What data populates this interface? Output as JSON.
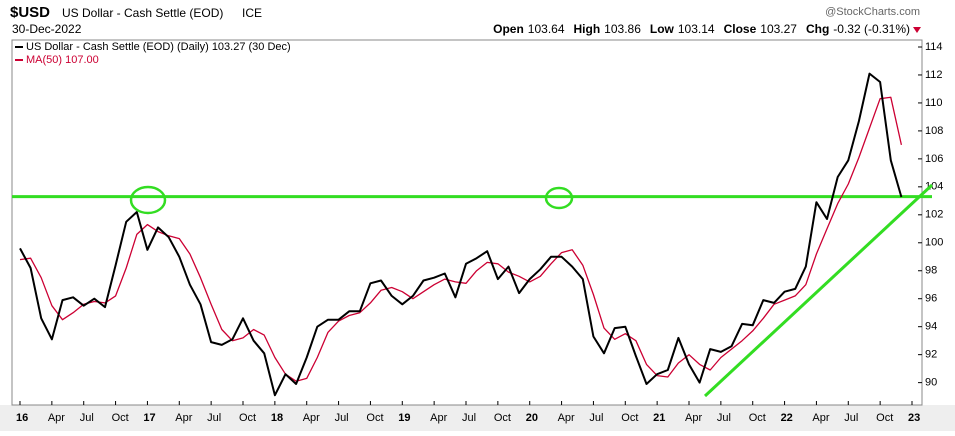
{
  "header": {
    "symbol": "$USD",
    "name": "US Dollar - Cash Settle (EOD)",
    "exchange": "ICE",
    "source": "@StockCharts.com",
    "date": "30-Dec-2022",
    "quote": [
      {
        "label": "Open",
        "value": "103.64"
      },
      {
        "label": "High",
        "value": "103.86"
      },
      {
        "label": "Low",
        "value": "103.14"
      },
      {
        "label": "Close",
        "value": "103.27"
      },
      {
        "label": "Chg",
        "value": "-0.32 (-0.31%)"
      }
    ]
  },
  "chart_data": {
    "type": "line",
    "categories": [
      "16",
      null,
      null,
      "Apr",
      null,
      null,
      "Jul",
      null,
      null,
      "Oct",
      null,
      null,
      "17",
      null,
      null,
      "Apr",
      null,
      null,
      "Jul",
      null,
      null,
      "Oct",
      null,
      null,
      "18",
      null,
      null,
      "Apr",
      null,
      null,
      "Jul",
      null,
      null,
      "Oct",
      null,
      null,
      "19",
      null,
      null,
      "Apr",
      null,
      null,
      "Jul",
      null,
      null,
      "Oct",
      null,
      null,
      "20",
      null,
      null,
      "Apr",
      null,
      null,
      "Jul",
      null,
      null,
      "Oct",
      null,
      null,
      "21",
      null,
      null,
      "Apr",
      null,
      null,
      "Jul",
      null,
      null,
      "Oct",
      null,
      null,
      "22",
      null,
      null,
      "Apr",
      null,
      null,
      "Jul",
      null,
      null,
      "Oct",
      null,
      null,
      "23"
    ],
    "series": [
      {
        "name": "US Dollar - Cash Settle (EOD) (Daily) 103.27 (30 Dec)",
        "color": "#000000",
        "values": [
          99.6,
          98.2,
          94.6,
          93.1,
          95.9,
          96.1,
          95.5,
          96.0,
          95.4,
          98.4,
          101.5,
          102.2,
          99.5,
          101.1,
          100.4,
          99.0,
          97.0,
          95.6,
          92.9,
          92.7,
          93.1,
          94.6,
          93.0,
          92.1,
          89.1,
          90.6,
          89.9,
          91.8,
          94.0,
          94.5,
          94.5,
          95.1,
          95.1,
          97.1,
          97.3,
          96.2,
          95.6,
          96.2,
          97.3,
          97.5,
          97.8,
          96.1,
          98.5,
          98.9,
          99.4,
          97.4,
          98.3,
          96.4,
          97.4,
          98.1,
          99.0,
          99.0,
          98.3,
          97.4,
          93.3,
          92.1,
          93.9,
          94.0,
          91.9,
          89.9,
          90.6,
          90.9,
          93.2,
          91.3,
          90.0,
          92.4,
          92.2,
          92.6,
          94.2,
          94.1,
          95.9,
          95.7,
          96.5,
          96.7,
          98.3,
          102.9,
          101.7,
          104.7,
          105.9,
          108.7,
          112.1,
          111.5,
          105.9,
          103.27,
          null
        ]
      },
      {
        "name": "MA(50) 107.00",
        "color": "#cc0033",
        "values": [
          98.8,
          98.9,
          97.5,
          95.5,
          94.5,
          95.0,
          95.6,
          95.8,
          95.7,
          96.2,
          98.2,
          100.6,
          101.3,
          100.8,
          100.5,
          100.3,
          99.2,
          97.5,
          95.6,
          93.8,
          93.0,
          93.2,
          93.8,
          93.4,
          91.8,
          90.6,
          90.1,
          90.3,
          91.8,
          93.6,
          94.4,
          94.8,
          95.0,
          95.7,
          96.6,
          96.8,
          96.5,
          96.0,
          96.5,
          97.0,
          97.4,
          97.2,
          97.1,
          98.0,
          98.6,
          98.5,
          97.9,
          97.6,
          97.2,
          97.6,
          98.5,
          99.3,
          99.5,
          98.4,
          96.3,
          93.9,
          93.1,
          93.5,
          93.0,
          91.3,
          90.5,
          90.4,
          91.4,
          92.0,
          91.3,
          90.9,
          91.8,
          92.4,
          93.0,
          93.7,
          94.6,
          95.6,
          95.9,
          96.2,
          97.0,
          99.2,
          101.0,
          102.8,
          104.2,
          106.1,
          108.2,
          110.3,
          110.4,
          107.0,
          null
        ]
      }
    ],
    "ylim": [
      88.4,
      114.5
    ],
    "yticks": [
      90,
      92,
      94,
      96,
      98,
      100,
      102,
      104,
      106,
      108,
      110,
      112,
      114
    ],
    "support_level": 103.3,
    "grid": false
  }
}
